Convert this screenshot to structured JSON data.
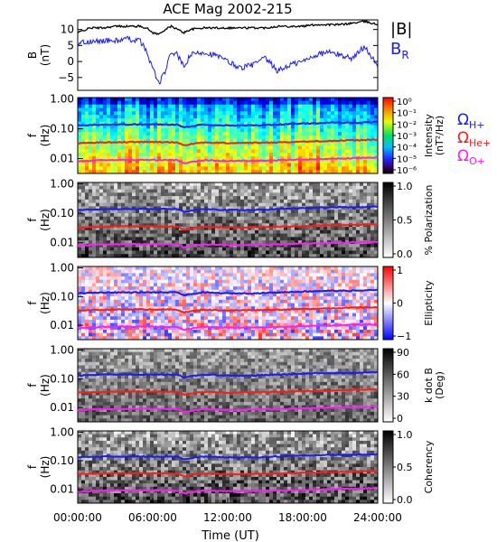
{
  "title": "ACE Mag 2002-215",
  "x_axis": {
    "label": "Time (UT)",
    "ticks": [
      "00:00:00",
      "06:00:00",
      "12:00:00",
      "18:00:00",
      "24:00:00"
    ]
  },
  "colors": {
    "B_total": "#000000",
    "B_R": "#1a1aff",
    "omega_H": "#1a1aff",
    "omega_He": "#ff1a1a",
    "omega_O": "#ff1aff"
  },
  "labels": {
    "B_total": "|B|",
    "B_R_main": "B",
    "B_R_sub": "R",
    "omega_H_main": "Ω",
    "omega_H_sub": "H+",
    "omega_He_main": "Ω",
    "omega_He_sub": "He+",
    "omega_O_main": "Ω",
    "omega_O_sub": "O+"
  },
  "panels": [
    {
      "id": "b-field",
      "ylabel": "B",
      "yunit": "(nT)",
      "yticks": [
        "10",
        "5",
        "0",
        "−5"
      ]
    },
    {
      "id": "intensity",
      "ylabel": "f",
      "yunit": "(Hz)",
      "yticks": [
        "1.00",
        "0.10",
        "0.01"
      ],
      "cbar_label": "Intensity",
      "cbar_unit": "(nT²/Hz)",
      "cbar_ticks": [
        "10⁰",
        "10⁻¹",
        "10⁻²",
        "10⁻³",
        "10⁻⁴",
        "10⁻⁵",
        "10⁻⁶"
      ]
    },
    {
      "id": "polarization",
      "ylabel": "f",
      "yunit": "(Hz)",
      "yticks": [
        "1.00",
        "0.10",
        "0.01"
      ],
      "cbar_label": "% Polarization",
      "cbar_ticks": [
        "1.0",
        "0.5",
        "0.0"
      ]
    },
    {
      "id": "ellipticity",
      "ylabel": "f",
      "yunit": "(Hz)",
      "yticks": [
        "1.00",
        "0.10",
        "0.01"
      ],
      "cbar_label": "Ellipticity",
      "cbar_ticks": [
        "1",
        "0",
        "−1"
      ]
    },
    {
      "id": "k-dot-b",
      "ylabel": "f",
      "yunit": "(Hz)",
      "yticks": [
        "1.00",
        "0.10",
        "0.01"
      ],
      "cbar_label": "k dot B",
      "cbar_unit": "(Deg)",
      "cbar_ticks": [
        "90",
        "60",
        "30",
        "0"
      ]
    },
    {
      "id": "coherency",
      "ylabel": "f",
      "yunit": "(Hz)",
      "yticks": [
        "1.00",
        "0.10",
        "0.01"
      ],
      "cbar_label": "Coherency",
      "cbar_ticks": [
        "1.0",
        "0.5",
        "0.0"
      ]
    }
  ],
  "chart_data": {
    "type": "line",
    "title": "ACE Mag 2002-215",
    "xlabel": "Time (UT)",
    "xlim_hours": [
      0,
      24
    ],
    "b_panel": {
      "ylabel": "B (nT)",
      "ylim": [
        -9,
        13
      ],
      "x_hours": [
        0,
        1,
        2,
        3,
        4,
        5,
        5.5,
        6,
        6.5,
        7,
        7.5,
        8,
        8.5,
        9,
        10,
        11,
        12,
        13,
        14,
        15,
        16,
        17,
        18,
        19,
        20,
        21,
        22,
        23,
        24
      ],
      "series": [
        {
          "name": "|B|",
          "values": [
            9,
            10.5,
            10.5,
            11,
            11,
            11,
            10.5,
            9,
            8.5,
            10,
            11,
            10,
            9,
            10,
            10.5,
            10.5,
            10.5,
            10.5,
            10.5,
            10.5,
            11,
            11,
            11,
            11.5,
            11.5,
            11.5,
            12,
            12.5,
            11.5
          ]
        },
        {
          "name": "B_R",
          "values": [
            6,
            6,
            6.5,
            6.5,
            7,
            6.5,
            3,
            -2,
            -7,
            -3,
            3,
            2,
            -2,
            2,
            3,
            2,
            0,
            -2,
            -1,
            1,
            -3,
            -1,
            0,
            2,
            3,
            2,
            1,
            5,
            -2
          ]
        }
      ]
    },
    "spectrogram_panels": {
      "ylabel": "f (Hz)",
      "ylim_log10": [
        -2.5,
        0.05
      ],
      "scale": "log",
      "x_hours": [
        0,
        2,
        4,
        6,
        8,
        8.5,
        10,
        12,
        14,
        16,
        18,
        20,
        22,
        24
      ],
      "series": [
        {
          "name": "Ω_H+",
          "values": [
            0.13,
            0.14,
            0.14,
            0.14,
            0.14,
            0.11,
            0.14,
            0.13,
            0.13,
            0.14,
            0.15,
            0.16,
            0.16,
            0.17
          ]
        },
        {
          "name": "Ω_He+",
          "values": [
            0.033,
            0.035,
            0.036,
            0.036,
            0.035,
            0.028,
            0.035,
            0.033,
            0.034,
            0.035,
            0.037,
            0.039,
            0.041,
            0.043
          ]
        },
        {
          "name": "Ω_O+",
          "values": [
            0.008,
            0.0088,
            0.009,
            0.009,
            0.0088,
            0.007,
            0.0088,
            0.0083,
            0.0085,
            0.0088,
            0.0093,
            0.0098,
            0.0103,
            0.0108
          ]
        }
      ]
    }
  }
}
